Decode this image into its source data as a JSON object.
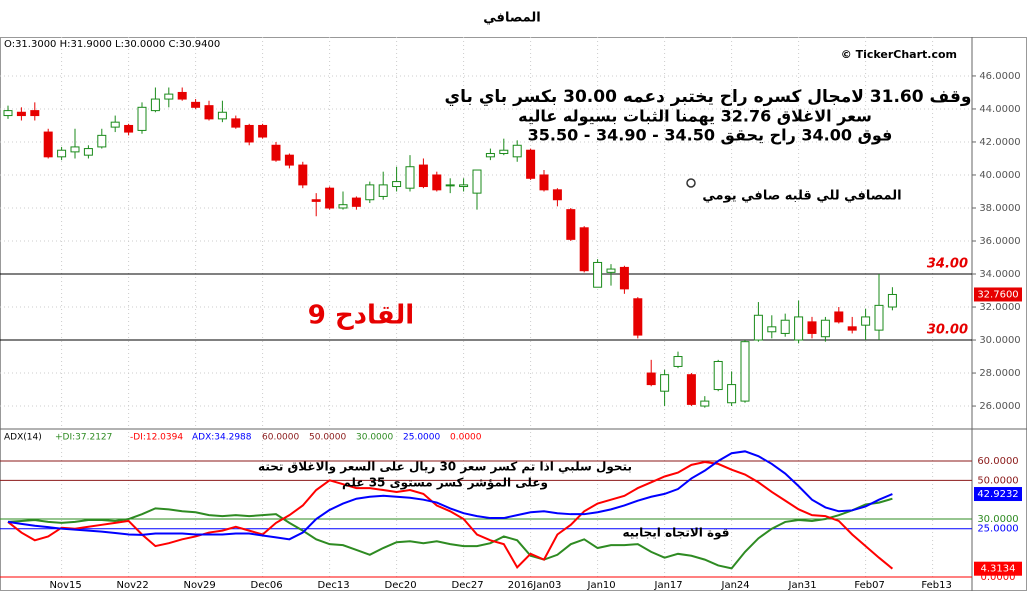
{
  "title": "المصافي",
  "chart_data": [
    {
      "type": "candlestick",
      "header": "O:31.3000  H:31.9000  L:30.0000  C:30.9400",
      "watermark": "© TickerChart.com",
      "open": [
        43.6,
        43.8,
        43.9,
        42.6,
        41.1,
        41.4,
        41.2,
        41.7,
        42.9,
        43.0,
        42.7,
        43.9,
        44.6,
        45.0,
        44.4,
        44.2,
        43.4,
        43.4,
        43.0,
        43.0,
        41.8,
        41.2,
        40.6,
        38.5,
        39.2,
        38.0,
        38.6,
        38.5,
        38.7,
        39.3,
        39.2,
        40.6,
        40.0,
        39.4,
        39.3,
        38.9,
        41.1,
        41.3,
        41.1,
        41.5,
        40.0,
        39.1,
        37.9,
        36.8,
        33.2,
        34.1,
        34.4,
        32.5,
        28.0,
        26.9,
        28.4,
        27.9,
        26.0,
        27.0,
        26.2,
        26.3,
        30.0,
        30.5,
        30.4,
        30.0,
        31.1,
        30.2,
        31.7,
        30.8,
        30.9,
        30.6,
        32.0,
        null,
        null,
        null
      ],
      "high": [
        44.2,
        44.1,
        44.4,
        42.8,
        41.7,
        42.8,
        41.8,
        42.8,
        43.6,
        43.1,
        44.4,
        45.3,
        45.3,
        45.3,
        44.6,
        44.5,
        44.5,
        43.6,
        43.1,
        43.1,
        42.0,
        41.3,
        40.8,
        38.9,
        39.3,
        39.0,
        38.7,
        39.6,
        40.2,
        40.5,
        41.2,
        41.0,
        40.2,
        39.8,
        39.8,
        40.3,
        41.6,
        42.2,
        42.1,
        41.6,
        40.3,
        39.2,
        38.0,
        36.9,
        34.9,
        34.6,
        34.5,
        32.6,
        28.8,
        28.2,
        29.3,
        28.0,
        26.6,
        28.8,
        28.1,
        30.0,
        32.3,
        31.5,
        31.6,
        32.4,
        31.4,
        31.4,
        32.0,
        31.4,
        31.9,
        34.0,
        33.2,
        null,
        null,
        null
      ],
      "low": [
        43.4,
        43.3,
        43.3,
        41.0,
        40.9,
        41.0,
        41.0,
        41.6,
        42.6,
        42.4,
        42.5,
        43.8,
        44.1,
        44.5,
        44.0,
        43.3,
        43.2,
        42.8,
        41.8,
        42.2,
        40.8,
        40.4,
        39.2,
        37.5,
        37.9,
        37.9,
        37.9,
        38.3,
        38.5,
        39.0,
        39.0,
        39.2,
        39.0,
        38.9,
        39.0,
        37.9,
        40.9,
        41.2,
        40.8,
        39.7,
        39.0,
        38.1,
        36.0,
        34.1,
        33.2,
        33.3,
        32.8,
        30.1,
        27.2,
        26.0,
        28.3,
        26.0,
        25.9,
        26.9,
        26.0,
        26.2,
        29.9,
        30.1,
        30.2,
        29.8,
        30.1,
        29.9,
        31.0,
        30.4,
        30.0,
        30.0,
        31.8,
        null,
        null,
        null
      ],
      "close": [
        43.9,
        43.6,
        43.6,
        41.1,
        41.5,
        41.7,
        41.6,
        42.4,
        43.2,
        42.6,
        44.1,
        44.6,
        44.9,
        44.6,
        44.1,
        43.4,
        43.8,
        42.9,
        42.0,
        42.3,
        40.9,
        40.6,
        39.4,
        38.4,
        38.0,
        38.2,
        38.1,
        39.4,
        39.4,
        39.6,
        40.5,
        39.3,
        39.1,
        39.4,
        39.4,
        40.3,
        41.3,
        41.5,
        41.8,
        39.8,
        39.1,
        38.5,
        36.1,
        34.2,
        34.7,
        34.3,
        33.1,
        30.3,
        27.3,
        27.9,
        29.0,
        26.1,
        26.3,
        28.7,
        27.3,
        29.9,
        31.5,
        30.8,
        31.2,
        31.4,
        30.4,
        31.2,
        31.1,
        30.6,
        31.4,
        32.1,
        32.76,
        null,
        null,
        null
      ],
      "up_color": "#1a8a1a",
      "down_color": "#e60000",
      "ylim": [
        24.67,
        48.36
      ],
      "yticks": [
        {
          "value": 26,
          "label": "26.0000"
        },
        {
          "value": 28,
          "label": "28.0000"
        },
        {
          "value": 30,
          "label": "30.0000"
        },
        {
          "value": 32,
          "label": "32.0000"
        },
        {
          "value": 34,
          "label": "34.0000"
        },
        {
          "value": 36,
          "label": "36.0000"
        },
        {
          "value": 38,
          "label": "38.0000"
        },
        {
          "value": 40,
          "label": "40.0000"
        },
        {
          "value": 42,
          "label": "42.0000"
        },
        {
          "value": 44,
          "label": "44.0000"
        },
        {
          "value": 46,
          "label": "46.0000"
        }
      ],
      "grid": true,
      "hlines": [
        {
          "value": 34,
          "label": "34.00"
        },
        {
          "value": 30,
          "label": "30.00"
        }
      ],
      "price_marker": {
        "value": 32.76,
        "label": "32.7600"
      },
      "annotations": [
        "وقف 31.60 لامجال كسره راح يختبر دعمه 30.00 بكسر باي باي",
        "سعر الاغلاق 32.76 يهمنا الثبات بسيوله عاليه",
        "فوق 34.00 راح يحقق 34.50 - 34.90 - 35.50",
        "المصافي للي قلبه صافي  يومي",
        "القادح 9"
      ]
    },
    {
      "type": "line",
      "header": "ADX(14)",
      "categories": [
        null,
        null,
        null,
        null,
        "Nov15",
        null,
        null,
        null,
        null,
        "Nov22",
        null,
        null,
        null,
        null,
        "Nov29",
        null,
        null,
        null,
        null,
        "Dec06",
        null,
        null,
        null,
        null,
        "Dec13",
        null,
        null,
        null,
        null,
        "Dec20",
        null,
        null,
        null,
        null,
        "Dec27",
        null,
        null,
        null,
        null,
        "2016Jan03",
        null,
        null,
        null,
        null,
        "Jan10",
        null,
        null,
        null,
        null,
        "Jan17",
        null,
        null,
        null,
        null,
        "Jan24",
        null,
        null,
        null,
        null,
        "Jan31",
        null,
        null,
        null,
        null,
        "Feb07",
        null,
        null,
        null,
        null,
        "Feb13"
      ],
      "series": [
        {
          "name": "+DI:37.2127",
          "color": "#2e8b22",
          "values": [
            28.5,
            29,
            29.5,
            28.5,
            28,
            28.5,
            29.5,
            29.5,
            29,
            30,
            32.5,
            35.5,
            35,
            34,
            33.5,
            32,
            31.5,
            32,
            31.5,
            32,
            32.5,
            28,
            24,
            19.5,
            17,
            16.5,
            14,
            11.5,
            15,
            18,
            18.5,
            17.5,
            18.5,
            17,
            16,
            16,
            17.5,
            21,
            19,
            11,
            9,
            11.5,
            17,
            19.5,
            15,
            16.5,
            16.5,
            17,
            13,
            10,
            12,
            11,
            9,
            6,
            4.5,
            13,
            20,
            25,
            28.5,
            29.5,
            29,
            30,
            32,
            34.5,
            37.5,
            38.5,
            40.5,
            null,
            null,
            null
          ]
        },
        {
          "name": "-DI:12.0394",
          "color": "#ff0000",
          "values": [
            28.5,
            23,
            19,
            21,
            25.5,
            25,
            26,
            27,
            28,
            29,
            22,
            16,
            17.5,
            19.5,
            21,
            23,
            24,
            26,
            24,
            22,
            28,
            32,
            37,
            45,
            50,
            48,
            46,
            46,
            45,
            44,
            45,
            43,
            37,
            34,
            30,
            22,
            19,
            17,
            5,
            12,
            9,
            22,
            27,
            34,
            38,
            40,
            42,
            46,
            49,
            52,
            54,
            58,
            59.5,
            58.5,
            55.5,
            53,
            49,
            44,
            39.5,
            35,
            32,
            31.5,
            29,
            22,
            16,
            10,
            4.3134,
            null,
            null,
            null
          ],
          "last_box": true
        },
        {
          "name": "ADX:34.2988",
          "color": "#0000ff",
          "values": [
            28.5,
            27.5,
            26.5,
            25.8,
            25,
            24.5,
            24,
            23.5,
            22.8,
            22,
            21.8,
            22.5,
            22.5,
            22.5,
            22,
            22,
            22,
            22.5,
            22.5,
            21.5,
            20.5,
            19.5,
            23,
            30,
            34.7,
            38,
            40.5,
            41.5,
            42,
            41.5,
            41,
            40,
            38.5,
            35.5,
            33,
            31.5,
            30.5,
            30.5,
            32,
            33.5,
            34,
            33,
            32.5,
            32.5,
            33.5,
            35,
            37,
            39.5,
            41.5,
            43,
            45.5,
            51,
            55,
            60,
            64,
            65,
            62.5,
            58.5,
            53.5,
            47,
            40,
            36,
            34,
            34.5,
            36.5,
            40,
            42.9232,
            null,
            null,
            null
          ],
          "last_box": true
        }
      ],
      "ylim": [
        -0.5,
        75
      ],
      "yticks": [
        {
          "value": 60,
          "label": "60.0000"
        },
        {
          "value": 50,
          "label": "50.0000"
        },
        {
          "value": 30,
          "label": "30.0000"
        },
        {
          "value": 25,
          "label": "25.0000"
        },
        {
          "value": 0,
          "label": "0.0000"
        }
      ],
      "level_colors": [
        "#8b1a1a",
        "#8b1a1a",
        "#2e8b22",
        "#0000ff",
        "#ff0000"
      ],
      "annotations": [
        "بتحول سلبي اذا تم كسر سعر 30 ريال على السعر والاغلاق تحته",
        "وعلى المؤشر كسر مستوى 35 علم",
        "قوة الاتجاه ايجابيه"
      ]
    }
  ]
}
